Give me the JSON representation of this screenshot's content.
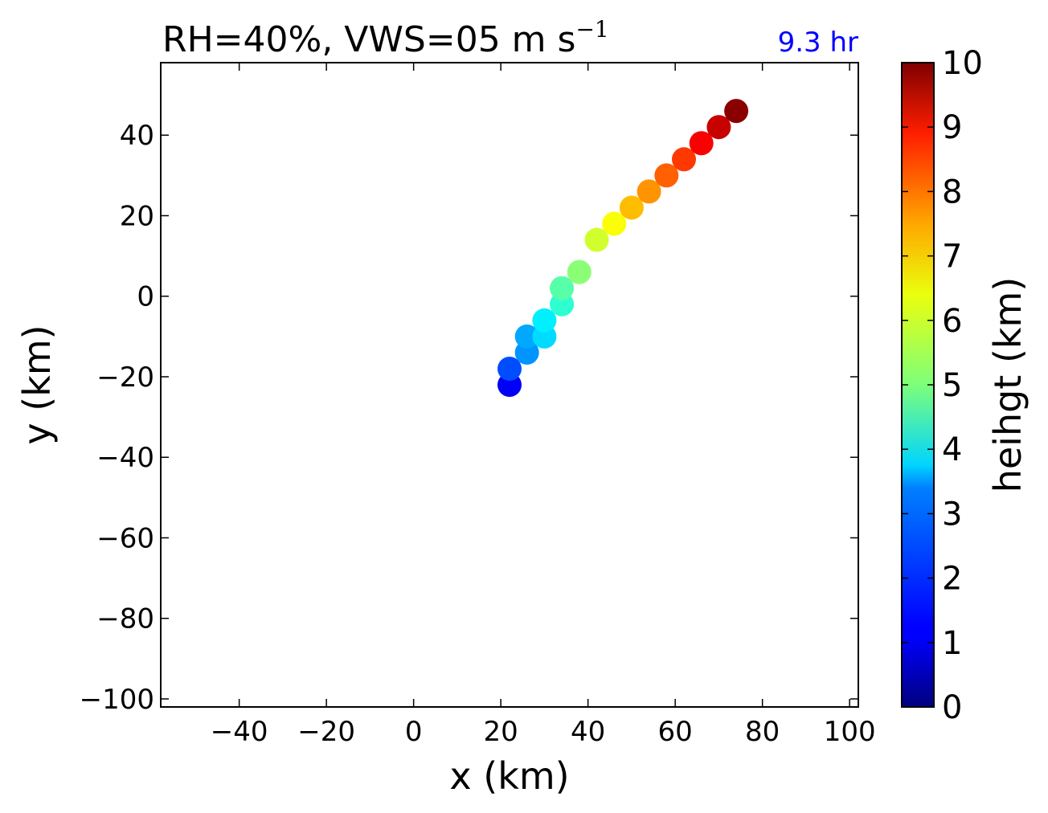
{
  "chart_data": {
    "type": "scatter",
    "title": "RH=40%, VWS=05 m s",
    "title_superscript": "−1",
    "annotation": "9.3 hr",
    "annotation_color": "#0000ff",
    "xlabel": "x (km)",
    "ylabel": "y (km)",
    "xlim": [
      -58,
      102
    ],
    "ylim": [
      -102,
      58
    ],
    "xticks": [
      -40,
      -20,
      0,
      20,
      40,
      60,
      80,
      100
    ],
    "yticks": [
      -100,
      -80,
      -60,
      -40,
      -20,
      0,
      20,
      40
    ],
    "grid": false,
    "colormap": "jet",
    "colorbar": {
      "label": "heihgt (km)",
      "range": [
        0,
        10
      ],
      "ticks": [
        0,
        1,
        2,
        3,
        4,
        5,
        6,
        7,
        8,
        9,
        10
      ]
    },
    "points": [
      {
        "x": 22,
        "y": -22,
        "height": 1.2
      },
      {
        "x": 22,
        "y": -18,
        "height": 2.0
      },
      {
        "x": 26,
        "y": -14,
        "height": 2.7
      },
      {
        "x": 26,
        "y": -10,
        "height": 2.9
      },
      {
        "x": 30,
        "y": -10,
        "height": 3.4
      },
      {
        "x": 30,
        "y": -6,
        "height": 3.6
      },
      {
        "x": 34,
        "y": -2,
        "height": 4.2
      },
      {
        "x": 34,
        "y": 2,
        "height": 4.6
      },
      {
        "x": 38,
        "y": 6,
        "height": 5.1
      },
      {
        "x": 42,
        "y": 14,
        "height": 5.8
      },
      {
        "x": 46,
        "y": 18,
        "height": 6.2
      },
      {
        "x": 50,
        "y": 22,
        "height": 6.9
      },
      {
        "x": 54,
        "y": 26,
        "height": 7.3
      },
      {
        "x": 58,
        "y": 30,
        "height": 7.8
      },
      {
        "x": 62,
        "y": 34,
        "height": 8.2
      },
      {
        "x": 66,
        "y": 38,
        "height": 8.8
      },
      {
        "x": 70,
        "y": 42,
        "height": 9.3
      },
      {
        "x": 74,
        "y": 46,
        "height": 9.9
      }
    ]
  }
}
